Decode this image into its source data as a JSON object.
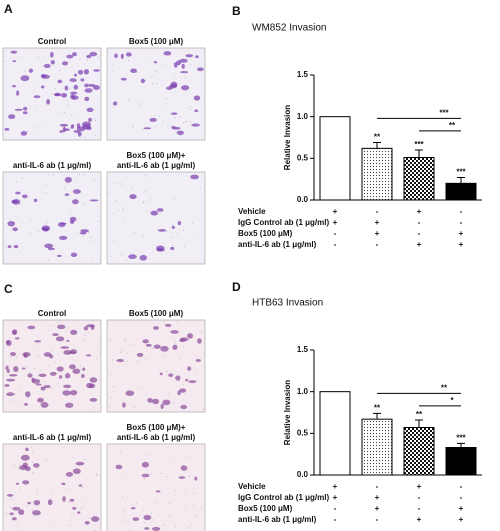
{
  "panel_labels": {
    "a": "A",
    "b": "B",
    "c": "C",
    "d": "D"
  },
  "image_panels": [
    {
      "captions": [
        [
          "Control"
        ],
        [
          "Box5 (100 μM)"
        ],
        [
          "anti-IL-6 ab (1 μg/ml)"
        ],
        [
          "Box5 (100 μM)+",
          "anti-IL-6 ab (1 μg/ml)"
        ]
      ]
    },
    {
      "captions": [
        [
          "Control"
        ],
        [
          "Box5 (100 μM)"
        ],
        [
          "anti-IL-6 ab (1 μg/ml)"
        ],
        [
          "Box5 (100 μM)+",
          "anti-IL-6 ab (1 μg/ml)"
        ]
      ]
    }
  ],
  "chart_data": [
    {
      "type": "bar",
      "title": "WM852 Invasion",
      "y_label": "Relative Invasion",
      "values": [
        1.0,
        0.62,
        0.51,
        0.2
      ],
      "errors": [
        null,
        0.07,
        0.09,
        0.07
      ],
      "fills": [
        "white",
        "dots",
        "checker",
        "black"
      ],
      "ylim": [
        0,
        1.5
      ],
      "yticks": [
        {
          "value": 0,
          "label": "0.0"
        },
        {
          "value": 0.5,
          "label": "0.5"
        },
        {
          "value": 1,
          "label": "1.0"
        },
        {
          "value": 1.5,
          "label": "1.5"
        }
      ],
      "significance": [
        null,
        "**",
        "***",
        "***"
      ],
      "comparisons": [
        "***",
        "**"
      ],
      "treatments": [
        {
          "label": "Vehicle",
          "marks": [
            "+",
            "-",
            "+",
            "-"
          ]
        },
        {
          "label": "IgG Control ab (1 μg/ml)",
          "marks": [
            "+",
            "+",
            "-",
            "-"
          ]
        },
        {
          "label": "Box5 (100 μM)",
          "marks": [
            "-",
            "+",
            "-",
            "+"
          ]
        },
        {
          "label": "anti-IL-6 ab (1 μg/ml)",
          "marks": [
            "-",
            "-",
            "+",
            "+"
          ]
        }
      ]
    },
    {
      "type": "bar",
      "title": "HTB63 Invasion",
      "y_label": "Relative Invasion",
      "values": [
        1.0,
        0.67,
        0.57,
        0.33
      ],
      "errors": [
        null,
        0.07,
        0.09,
        0.05
      ],
      "fills": [
        "white",
        "dots",
        "checker",
        "black"
      ],
      "ylim": [
        0,
        1.5
      ],
      "yticks": [
        {
          "value": 0,
          "label": "0.0"
        },
        {
          "value": 0.5,
          "label": "0.5"
        },
        {
          "value": 1,
          "label": "1.0"
        },
        {
          "value": 1.5,
          "label": "1.5"
        }
      ],
      "significance": [
        null,
        "**",
        "**",
        "***"
      ],
      "comparisons": [
        "**",
        "*"
      ],
      "treatments": [
        {
          "label": "Vehicle",
          "marks": [
            "+",
            "-",
            "+",
            "-"
          ]
        },
        {
          "label": "IgG Control ab (1 μg/ml)",
          "marks": [
            "+",
            "+",
            "-",
            "-"
          ]
        },
        {
          "label": "Box5 (100 μM)",
          "marks": [
            "-",
            "+",
            "-",
            "+"
          ]
        },
        {
          "label": "anti-IL-6 ab (1 μg/ml)",
          "marks": [
            "-",
            "-",
            "+",
            "+"
          ]
        }
      ]
    }
  ]
}
